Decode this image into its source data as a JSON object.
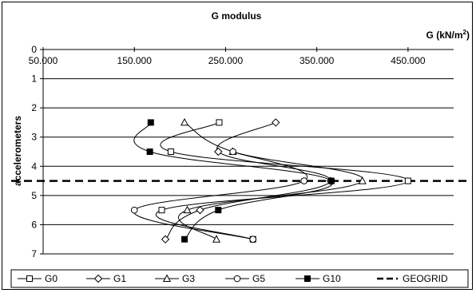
{
  "chart_data": {
    "type": "line",
    "title": "G modulus",
    "x_unit_label": "G (kN/m",
    "x_unit_sup": "2",
    "x_unit_close": ")",
    "ylabel": "accelerometers",
    "xlim": [
      50,
      500
    ],
    "ylim": [
      0,
      7
    ],
    "y_reversed": true,
    "x_ticks": [
      50,
      150,
      250,
      350,
      450
    ],
    "x_tick_labels": [
      "50.000",
      "150.000",
      "250.000",
      "350.000",
      "450.000"
    ],
    "y_ticks": [
      0,
      1,
      2,
      3,
      4,
      5,
      6,
      7
    ],
    "y_tick_labels": [
      "0",
      "1",
      "2",
      "3",
      "4",
      "5",
      "6",
      "7"
    ],
    "grid": "horizontal",
    "legend_position": "bottom",
    "series": [
      {
        "name": "G0",
        "marker": "square-open",
        "color": "#000000",
        "points": [
          [
            243,
            2.5
          ],
          [
            190,
            3.5
          ],
          [
            450,
            4.5
          ],
          [
            180,
            5.5
          ],
          [
            280,
            6.5
          ]
        ]
      },
      {
        "name": "G1",
        "marker": "diamond-open",
        "color": "#000000",
        "points": [
          [
            305,
            2.5
          ],
          [
            242,
            3.5
          ],
          [
            365,
            4.5
          ],
          [
            222,
            5.5
          ],
          [
            184,
            6.5
          ]
        ]
      },
      {
        "name": "G3",
        "marker": "triangle-open",
        "color": "#000000",
        "points": [
          [
            205,
            2.5
          ],
          [
            258,
            3.5
          ],
          [
            400,
            4.5
          ],
          [
            208,
            5.5
          ],
          [
            240,
            6.5
          ]
        ]
      },
      {
        "name": "G5",
        "marker": "circle-open",
        "color": "#000000",
        "points": [
          [
            258,
            3.5
          ],
          [
            336,
            4.5
          ],
          [
            150,
            5.5
          ],
          [
            280,
            6.5
          ]
        ]
      },
      {
        "name": "G10",
        "marker": "square-filled",
        "color": "#000000",
        "points": [
          [
            168,
            2.5
          ],
          [
            167,
            3.5
          ],
          [
            366,
            4.5
          ],
          [
            242,
            5.5
          ],
          [
            205,
            6.5
          ]
        ]
      }
    ],
    "reference_lines": [
      {
        "name": "GEOGRID",
        "axis": "y",
        "value": 4.5,
        "style": "dashed",
        "color": "#000000"
      }
    ]
  }
}
